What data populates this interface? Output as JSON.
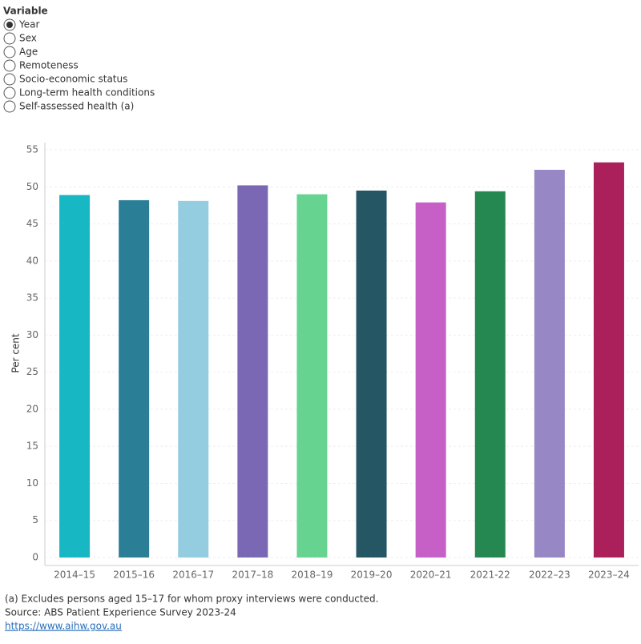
{
  "controls": {
    "title": "Variable",
    "options": [
      "Year",
      "Sex",
      "Age",
      "Remoteness",
      "Socio-economic status",
      "Long-term health conditions",
      "Self-assessed health (a)"
    ],
    "selected": "Year"
  },
  "chart_data": {
    "type": "bar",
    "y_label": "Per cent",
    "categories": [
      "2014–15",
      "2015–16",
      "2016–17",
      "2017–18",
      "2018–19",
      "2019–20",
      "2020–21",
      "2021-22",
      "2022–23",
      "2023–24"
    ],
    "values": [
      48.9,
      48.2,
      48.1,
      50.2,
      49.0,
      49.5,
      47.9,
      49.4,
      52.3,
      53.3
    ],
    "colors": [
      "#17b8c4",
      "#2a7f97",
      "#95cde0",
      "#7b68b5",
      "#66d390",
      "#255664",
      "#c660c6",
      "#258850",
      "#9787c5",
      "#ab1f5a"
    ],
    "ylim": [
      0,
      55
    ],
    "yticks": [
      0,
      5,
      10,
      15,
      20,
      25,
      30,
      35,
      40,
      45,
      50,
      55
    ],
    "grid": true
  },
  "footer": {
    "note": "(a) Excludes persons aged 15–17 for whom proxy interviews were conducted.",
    "source": "Source: ABS Patient Experience Survey 2023-24",
    "link": "https://www.aihw.gov.au"
  }
}
